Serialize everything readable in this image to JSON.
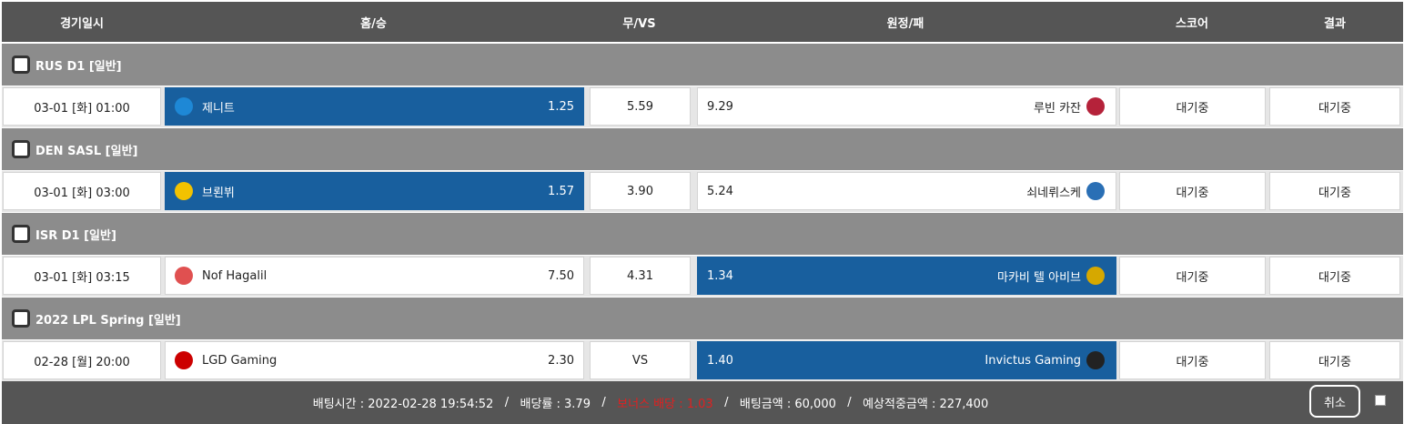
{
  "header": {
    "columns": [
      "경기일시",
      "홈/승",
      "무/VS",
      "원정/패",
      "스코어",
      "결과"
    ]
  },
  "groups": [
    {
      "league": "RUS D1 [일반]",
      "matches": [
        {
          "time": "03-01 [화] 01:00",
          "home": "제니트",
          "home_odds": "1.25",
          "draw": "5.59",
          "away_odds": "9.29",
          "away": "루빈 카잔",
          "score": "대기중",
          "result": "대기중",
          "selected": "home"
        }
      ]
    },
    {
      "league": "DEN SASL [일반]",
      "matches": [
        {
          "time": "03-01 [화] 03:00",
          "home": "브뢴뷔",
          "home_odds": "1.57",
          "draw": "3.90",
          "away_odds": "5.24",
          "away": "쇠네뤼스케",
          "score": "대기중",
          "result": "대기중",
          "selected": "home"
        }
      ]
    },
    {
      "league": "ISR D1 [일반]",
      "matches": [
        {
          "time": "03-01 [화] 03:15",
          "home": "Nof Hagalil",
          "home_odds": "7.50",
          "draw": "4.31",
          "away_odds": "1.34",
          "away": "마카비 텔 아비브",
          "score": "대기중",
          "result": "대기중",
          "selected": "away"
        }
      ]
    },
    {
      "league": "2022 LPL Spring [일반]",
      "matches": [
        {
          "time": "02-28 [월] 20:00",
          "home": "LGD Gaming",
          "home_odds": "2.30",
          "draw": "VS",
          "away_odds": "1.40",
          "away": "Invictus Gaming",
          "score": "대기중",
          "result": "대기중",
          "selected": "away"
        }
      ]
    }
  ],
  "footer": {
    "bet_time": "배팅시간 : 2022-02-28 19:54:52",
    "odds": "배당률 : 3.79",
    "bonus": "보너스 배당 : 1.03",
    "amount": "배팅금액 : 60,000",
    "expected": "예상적중금액 : 227,400",
    "cancel": "취소"
  }
}
